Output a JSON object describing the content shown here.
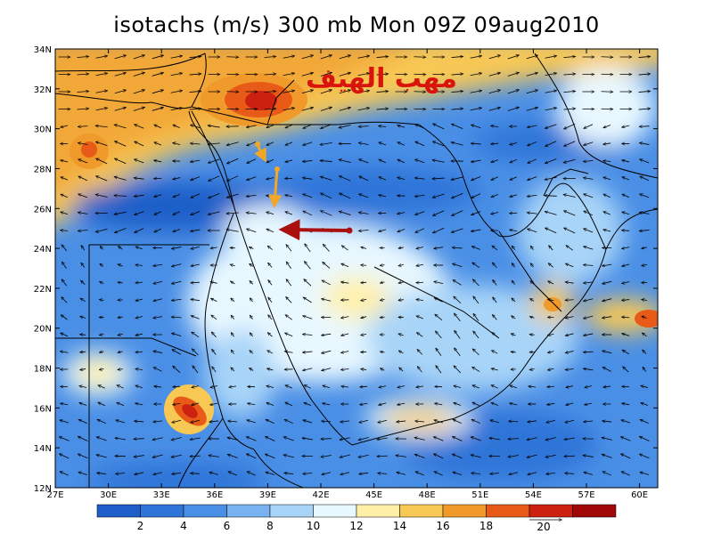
{
  "title": "isotachs (m/s) 300 mb Mon 09Z 09aug2010",
  "overlay_text": "مهب الهيف",
  "lat_labels": [
    "34N",
    "32N",
    "30N",
    "28N",
    "26N",
    "24N",
    "22N",
    "20N",
    "18N",
    "16N",
    "14N",
    "12N"
  ],
  "lon_labels": [
    "27E",
    "30E",
    "33E",
    "36E",
    "39E",
    "42E",
    "45E",
    "48E",
    "51E",
    "54E",
    "57E",
    "60E"
  ],
  "colorbar": {
    "colors": [
      "#1e5ec8",
      "#2f74d8",
      "#4a8fe6",
      "#78b2f0",
      "#a8d4f8",
      "#e8f8ff",
      "#fff0a8",
      "#f8c854",
      "#f09a2c",
      "#e85a18",
      "#cc2010",
      "#a00808"
    ],
    "labels": [
      "2",
      "4",
      "6",
      "8",
      "10",
      "12",
      "14",
      "16",
      "18"
    ],
    "extra_label": "20"
  },
  "wind_map": {
    "field": "isotachs",
    "units": "m/s",
    "level": "300 mb",
    "lon_range": [
      27,
      61
    ],
    "lat_range": [
      12,
      34
    ],
    "speed_maxima": [
      {
        "lon": 38.5,
        "lat": 31.4,
        "speed": 19
      },
      {
        "lon": 29.5,
        "lat": 28.9,
        "speed": 15
      },
      {
        "lon": 35.6,
        "lat": 15.8,
        "speed": 19
      },
      {
        "lon": 60.8,
        "lat": 20.2,
        "speed": 16
      }
    ]
  },
  "colors": {
    "arrow_dark_red": "#aa1010",
    "arrow_orange": "#f2a824",
    "overlay_text": "#d8140c"
  }
}
